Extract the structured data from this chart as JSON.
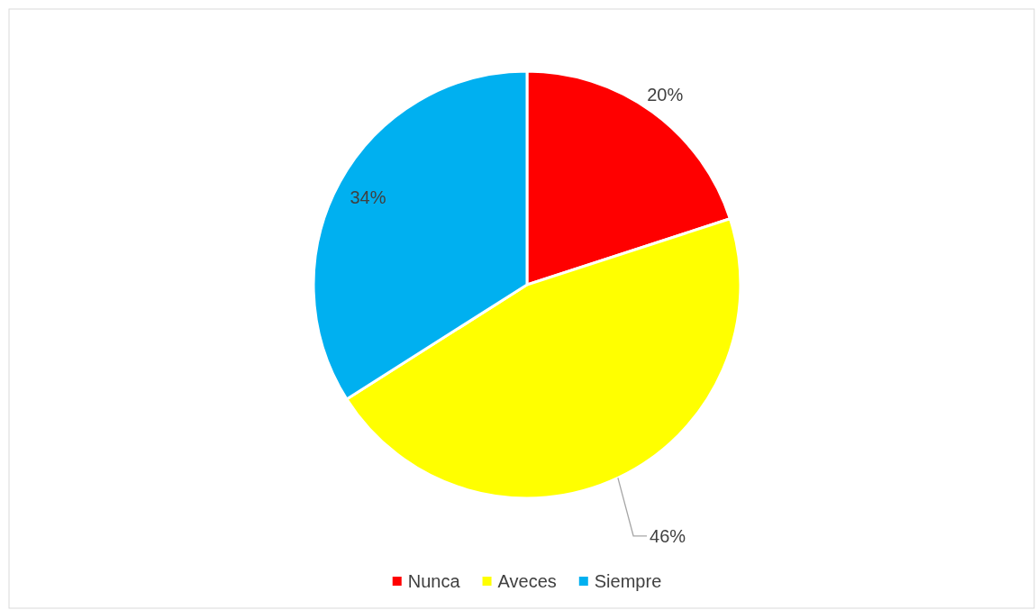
{
  "chart_data": {
    "type": "pie",
    "categories": [
      "Nunca",
      "Aveces",
      "Siempre"
    ],
    "values": [
      20,
      46,
      34
    ],
    "colors": [
      "#ff0000",
      "#ffff00",
      "#00b0f0"
    ],
    "value_labels": [
      "20%",
      "46%",
      "34%"
    ],
    "legend": "bottom"
  }
}
